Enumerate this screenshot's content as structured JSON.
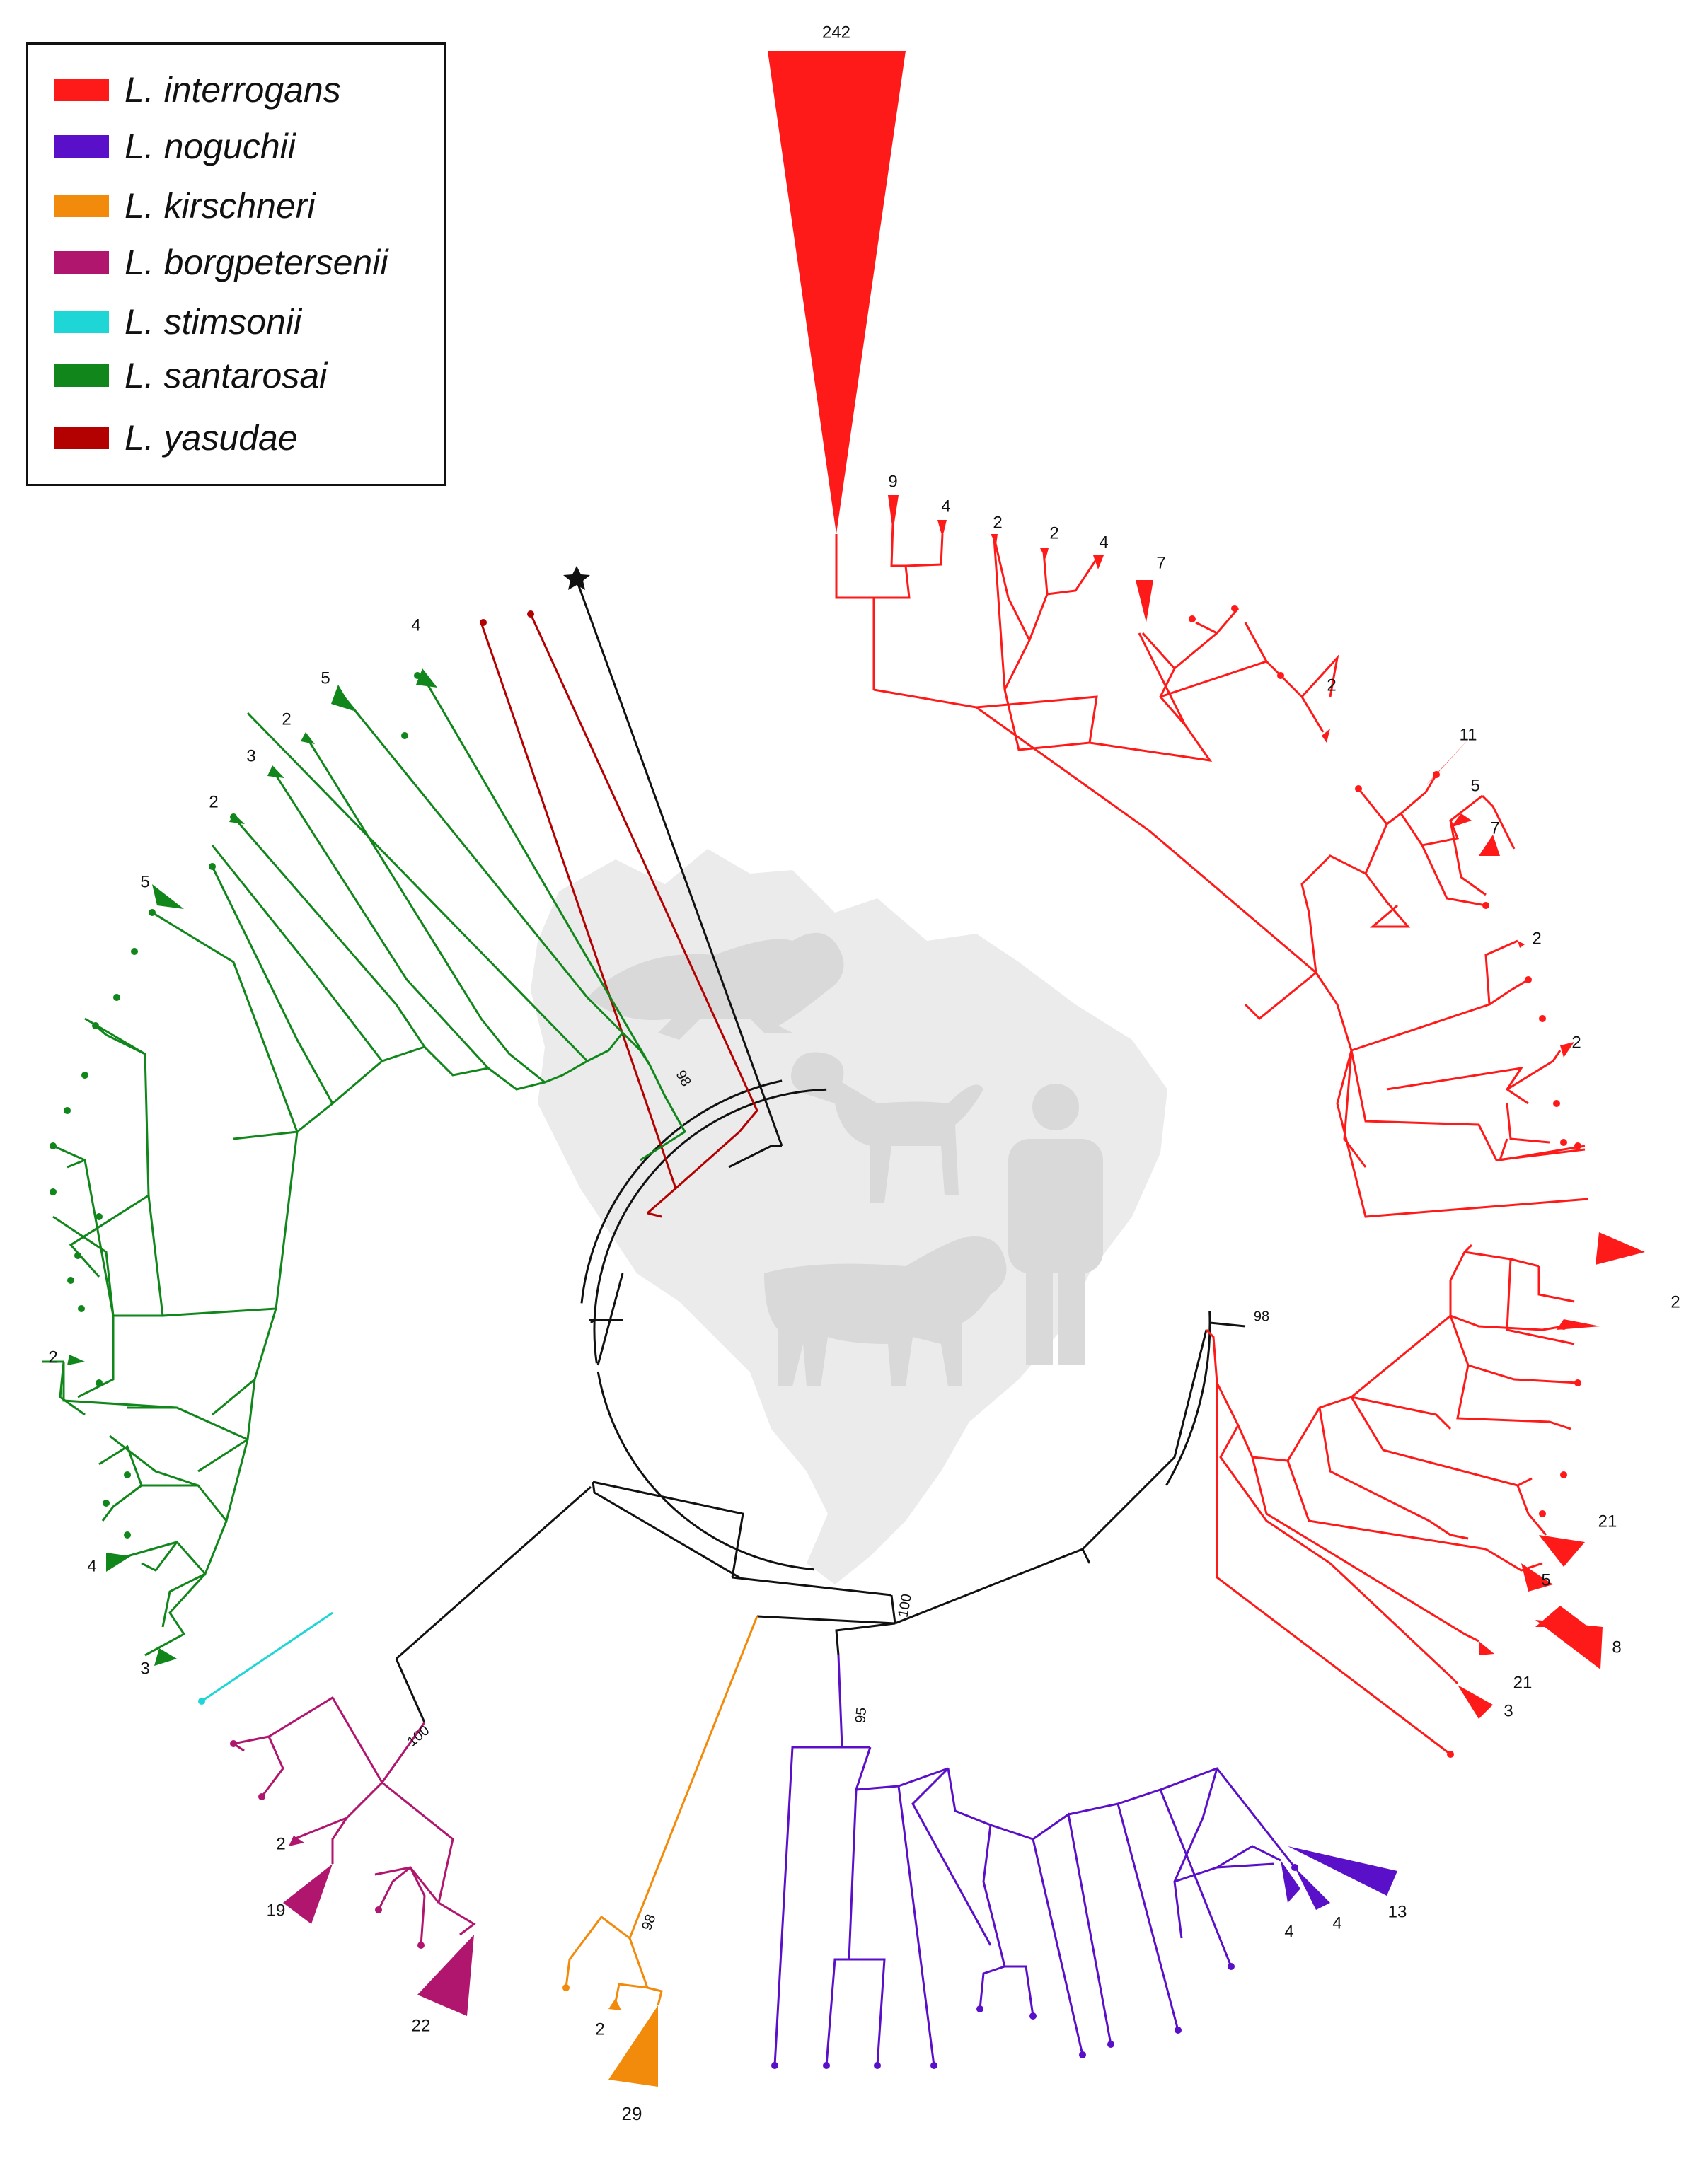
{
  "legend": {
    "items": [
      {
        "label": "L. interrogans",
        "color": "#ff1a1a"
      },
      {
        "label": "L. noguchii",
        "color": "#5a0fc8"
      },
      {
        "label": "L. kirschneri",
        "color": "#f28a0c"
      },
      {
        "label": "L. borgpetersenii",
        "color": "#b0166e"
      },
      {
        "label": "L. stimsonii",
        "color": "#1fd6d6"
      },
      {
        "label": "L. santarosai",
        "color": "#10861b"
      },
      {
        "label": "L. yasudae",
        "color": "#b30000"
      }
    ]
  },
  "colors": {
    "backbone": "#111111",
    "watermark": "#ebebeb",
    "watermark_figures": "#d9d9d9"
  },
  "bootstrap_values": [
    "98",
    "98",
    "100",
    "100",
    "95",
    "98"
  ],
  "collapsed_clade_counts": {
    "interrogans": [
      "242",
      "9",
      "4",
      "2",
      "2",
      "4",
      "7",
      "2",
      "11",
      "5",
      "7",
      "2",
      "2",
      "2",
      "21",
      "5",
      "21",
      "8",
      "3"
    ],
    "noguchii": [
      "13",
      "4",
      "4"
    ],
    "kirschneri": [
      "2",
      "29"
    ],
    "borgpetersenii": [
      "2",
      "19",
      "22"
    ],
    "santarosai": [
      "4",
      "5",
      "2",
      "3",
      "2",
      "5",
      "2",
      "4",
      "3"
    ]
  },
  "root_marker": "star",
  "icons": [
    "rat-icon",
    "dog-icon",
    "human-icon",
    "cow-icon",
    "brazil-map-icon"
  ]
}
